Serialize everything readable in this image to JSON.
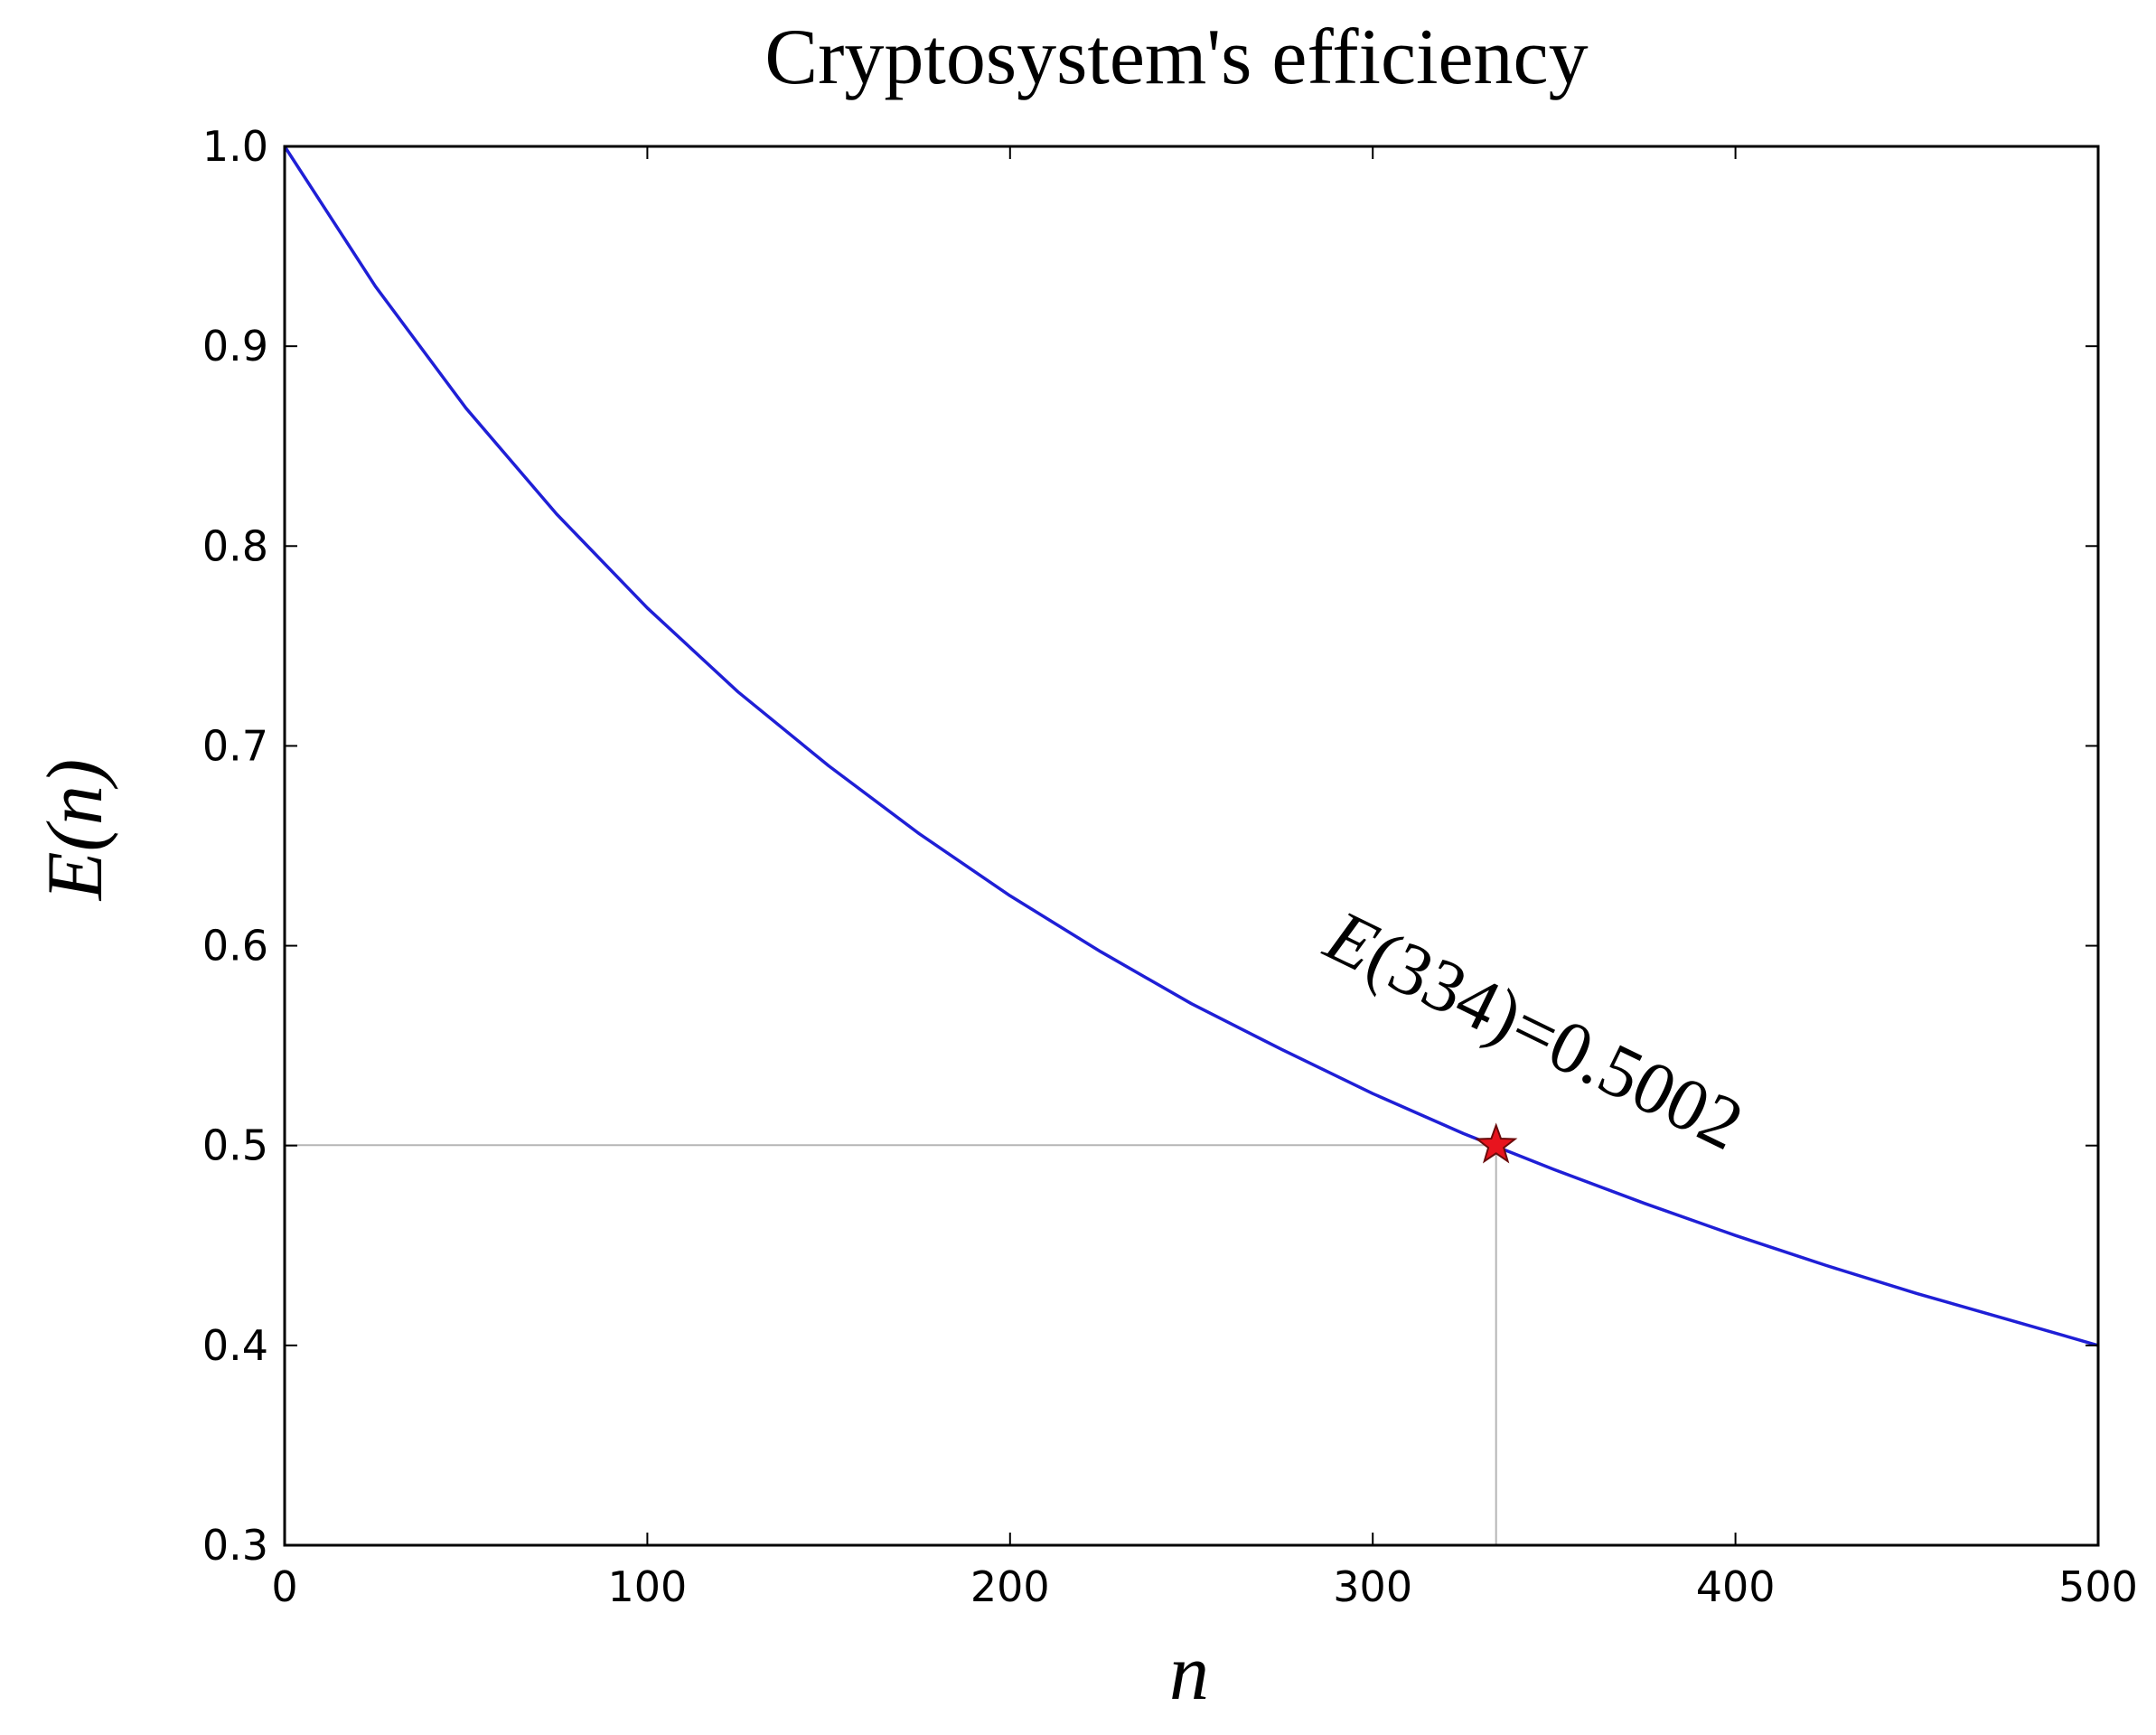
{
  "chart_data": {
    "type": "line",
    "title": "Cryptosystem's efficiency",
    "xlabel": "n",
    "ylabel": "E(n)",
    "xlim": [
      0,
      500
    ],
    "ylim": [
      0.3,
      1.0
    ],
    "xticks": [
      0,
      100,
      200,
      300,
      400,
      500
    ],
    "yticks": [
      0.3,
      0.4,
      0.5,
      0.6,
      0.7,
      0.8,
      0.9,
      1.0
    ],
    "xtick_labels": [
      "0",
      "100",
      "200",
      "300",
      "400",
      "500"
    ],
    "ytick_labels": [
      "0.3",
      "0.4",
      "0.5",
      "0.6",
      "0.7",
      "0.8",
      "0.9",
      "1.0"
    ],
    "grid": false,
    "series": [
      {
        "color": "#1f1fd6",
        "x": [
          0,
          25,
          50,
          75,
          100,
          125,
          150,
          175,
          200,
          225,
          250,
          275,
          300,
          325,
          350,
          375,
          400,
          425,
          450,
          475,
          500
        ],
        "y": [
          1.0,
          0.93,
          0.869,
          0.816,
          0.769,
          0.727,
          0.69,
          0.656,
          0.625,
          0.597,
          0.571,
          0.548,
          0.526,
          0.506,
          0.488,
          0.471,
          0.455,
          0.44,
          0.426,
          0.413,
          0.4
        ]
      }
    ],
    "highlight_point": {
      "x": 334,
      "y": 0.5002,
      "marker": "star",
      "color": "#e8141e",
      "guide_lines": true
    },
    "annotation": {
      "text_prefix": "E",
      "text_arg": "(334)",
      "text_rest": "=0.5002"
    }
  }
}
